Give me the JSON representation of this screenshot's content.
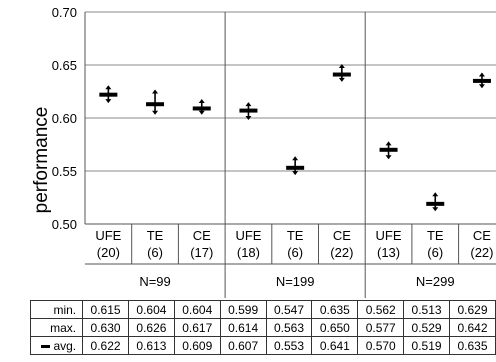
{
  "chart_data": {
    "type": "scatter",
    "ylabel": "performance",
    "ylim": [
      0.5,
      0.7
    ],
    "yticks": [
      "0.70",
      "0.65",
      "0.60",
      "0.55",
      "0.50"
    ],
    "grid": true,
    "marker": "cross with min/max whiskers",
    "marker_color": "#000000",
    "groups": [
      {
        "label": "N=99",
        "categories": [
          {
            "method": "UFE",
            "count": "(20)"
          },
          {
            "method": "TE",
            "count": "(6)"
          },
          {
            "method": "CE",
            "count": "(17)"
          }
        ]
      },
      {
        "label": "N=199",
        "categories": [
          {
            "method": "UFE",
            "count": "(18)"
          },
          {
            "method": "TE",
            "count": "(6)"
          },
          {
            "method": "CE",
            "count": "(22)"
          }
        ]
      },
      {
        "label": "N=299",
        "categories": [
          {
            "method": "UFE",
            "count": "(13)"
          },
          {
            "method": "TE",
            "count": "(6)"
          },
          {
            "method": "CE",
            "count": "(22)"
          }
        ]
      }
    ],
    "series": [
      {
        "name": "min.",
        "values": [
          0.615,
          0.604,
          0.604,
          0.599,
          0.547,
          0.635,
          0.562,
          0.513,
          0.629
        ]
      },
      {
        "name": "max.",
        "values": [
          0.63,
          0.626,
          0.617,
          0.614,
          0.563,
          0.65,
          0.577,
          0.529,
          0.642
        ]
      },
      {
        "name": "avg.",
        "values": [
          0.622,
          0.613,
          0.609,
          0.607,
          0.553,
          0.641,
          0.57,
          0.519,
          0.635
        ]
      }
    ],
    "table": {
      "rows": [
        {
          "label": "min.",
          "cells": [
            "0.615",
            "0.604",
            "0.604",
            "0.599",
            "0.547",
            "0.635",
            "0.562",
            "0.513",
            "0.629"
          ]
        },
        {
          "label": "max.",
          "cells": [
            "0.630",
            "0.626",
            "0.617",
            "0.614",
            "0.563",
            "0.650",
            "0.577",
            "0.529",
            "0.642"
          ]
        },
        {
          "label": "avg.",
          "cells": [
            "0.622",
            "0.613",
            "0.609",
            "0.607",
            "0.553",
            "0.641",
            "0.570",
            "0.519",
            "0.635"
          ]
        }
      ]
    }
  }
}
